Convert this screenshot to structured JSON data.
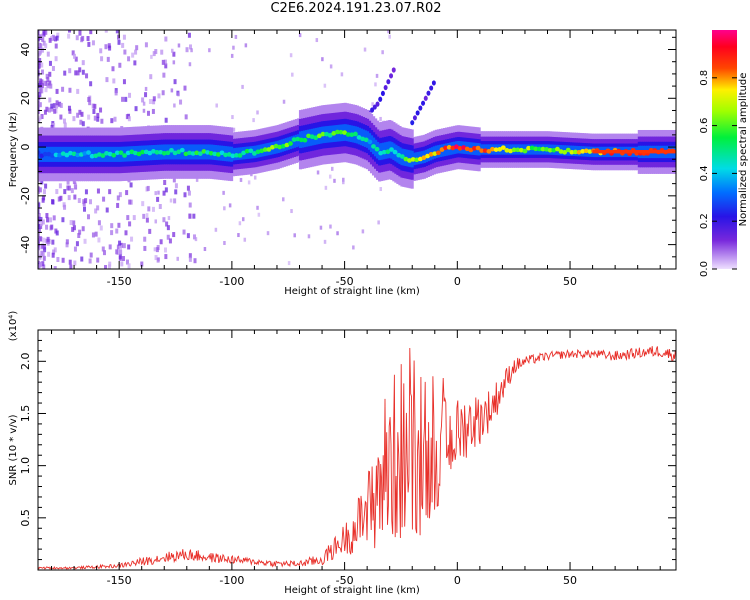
{
  "page_title": "C2E6.2024.191.23.07.R02",
  "chart_data": [
    {
      "type": "heatmap",
      "title": "C2E6.2024.191.23.07.R02",
      "xlabel": "Height of straight line (km)",
      "ylabel": "Frequency (Hz)",
      "xlim": [
        -186,
        97
      ],
      "ylim": [
        -50,
        48
      ],
      "x_ticks": [
        -150,
        -100,
        -50,
        0,
        50
      ],
      "x_tick_labels": [
        "-150",
        "-100",
        "-50",
        "0",
        "50"
      ],
      "y_ticks": [
        -40,
        -20,
        0,
        20,
        40
      ],
      "y_tick_labels": [
        "-40",
        "-20",
        "0",
        "20",
        "40"
      ],
      "colorbar": {
        "label": "Normalized spectral amplitude",
        "range": [
          0,
          1
        ],
        "ticks": [
          0.0,
          0.2,
          0.4,
          0.6,
          0.8
        ],
        "tick_labels": [
          "0.0",
          "0.2",
          "0.4",
          "0.6",
          "0.8"
        ],
        "colormap": "rainbow (white-violet-blue-cyan-green-yellow-red-magenta)"
      },
      "ridge": {
        "x": [
          -186,
          -170,
          -150,
          -130,
          -110,
          -100,
          -90,
          -80,
          -70,
          -60,
          -50,
          -45,
          -40,
          -35,
          -30,
          -25,
          -20,
          -15,
          -10,
          -5,
          0,
          10,
          20,
          40,
          60,
          80,
          97
        ],
        "frequency": [
          -3,
          -3,
          -3,
          -2,
          -2,
          -3,
          -2,
          0,
          3,
          5,
          6,
          5,
          3,
          -2,
          -1,
          -4,
          -5,
          -4,
          -2,
          -1,
          0,
          -1,
          -1,
          -1,
          -2,
          -2,
          -2
        ],
        "amplitude": [
          0.3,
          0.4,
          0.45,
          0.5,
          0.5,
          0.5,
          0.55,
          0.6,
          0.55,
          0.55,
          0.55,
          0.5,
          0.45,
          0.4,
          0.45,
          0.5,
          0.6,
          0.7,
          0.8,
          0.85,
          0.9,
          0.85,
          0.7,
          0.6,
          0.8,
          0.85,
          0.85
        ]
      },
      "rising_traces": [
        {
          "x": [
            -45,
            -35,
            -28
          ],
          "frequency": [
            8,
            18,
            32
          ]
        },
        {
          "x": [
            -20,
            -14,
            -10
          ],
          "frequency": [
            10,
            20,
            27
          ]
        }
      ]
    },
    {
      "type": "line",
      "xlabel": "Height of straight line (km)",
      "ylabel": "SNR (10 * v/v)",
      "y_multiplier": "(x10⁴)",
      "xlim": [
        -186,
        97
      ],
      "ylim": [
        0,
        2.3
      ],
      "x_ticks": [
        -150,
        -100,
        -50,
        0,
        50
      ],
      "x_tick_labels": [
        "-150",
        "-100",
        "-50",
        "0",
        "50"
      ],
      "y_ticks": [
        0.5,
        1.0,
        1.5,
        2.0
      ],
      "y_tick_labels": [
        "0.5",
        "1.0",
        "1.5",
        "2.0"
      ],
      "series": [
        {
          "color": "#e8302a",
          "x": [
            -186,
            -170,
            -150,
            -140,
            -130,
            -120,
            -110,
            -100,
            -90,
            -80,
            -70,
            -60,
            -55,
            -50,
            -45,
            -40,
            -35,
            -30,
            -25,
            -20,
            -15,
            -10,
            -5,
            0,
            5,
            10,
            15,
            20,
            25,
            30,
            40,
            50,
            60,
            70,
            80,
            90,
            97
          ],
          "values": [
            0.02,
            0.02,
            0.04,
            0.08,
            0.12,
            0.15,
            0.12,
            0.1,
            0.08,
            0.06,
            0.06,
            0.1,
            0.2,
            0.3,
            0.4,
            0.55,
            0.85,
            1.0,
            1.15,
            1.0,
            0.95,
            1.1,
            1.2,
            1.3,
            1.4,
            1.45,
            1.55,
            1.75,
            1.95,
            2.0,
            2.05,
            2.07,
            2.07,
            2.05,
            2.08,
            2.1,
            2.05
          ],
          "spread": [
            0.01,
            0.01,
            0.02,
            0.04,
            0.05,
            0.06,
            0.05,
            0.04,
            0.03,
            0.03,
            0.03,
            0.06,
            0.1,
            0.15,
            0.25,
            0.35,
            0.7,
            0.8,
            0.9,
            0.75,
            0.6,
            0.55,
            0.45,
            0.35,
            0.3,
            0.25,
            0.2,
            0.15,
            0.08,
            0.05,
            0.04,
            0.04,
            0.04,
            0.05,
            0.05,
            0.06,
            0.06
          ]
        }
      ]
    }
  ]
}
